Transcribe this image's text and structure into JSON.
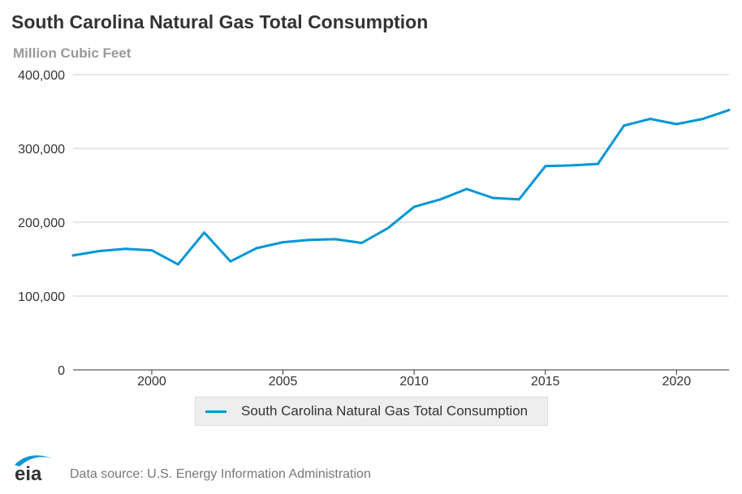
{
  "header": {
    "title": "South Carolina Natural Gas Total Consumption",
    "subtitle": "Million Cubic Feet"
  },
  "legend": {
    "label": "South Carolina Natural Gas Total Consumption"
  },
  "footer": {
    "logo_text": "eia",
    "source": "Data source: U.S. Energy Information Administration"
  },
  "colors": {
    "series": "#0096d7",
    "grid": "#cccccc",
    "logo": "#0096d7"
  },
  "chart_data": {
    "type": "line",
    "title": "South Carolina Natural Gas Total Consumption",
    "ylabel": "Million Cubic Feet",
    "xlabel": "",
    "xlim": [
      1997,
      2022
    ],
    "ylim": [
      0,
      400000
    ],
    "yticks": [
      0,
      100000,
      200000,
      300000,
      400000
    ],
    "ytick_labels": [
      "0",
      "100,000",
      "200,000",
      "300,000",
      "400,000"
    ],
    "xticks": [
      2000,
      2005,
      2010,
      2015,
      2020
    ],
    "xtick_labels": [
      "2000",
      "2005",
      "2010",
      "2015",
      "2020"
    ],
    "grid": true,
    "legend_position": "bottom-center",
    "series": [
      {
        "name": "South Carolina Natural Gas Total Consumption",
        "x": [
          1997,
          1998,
          1999,
          2000,
          2001,
          2002,
          2003,
          2004,
          2005,
          2006,
          2007,
          2008,
          2009,
          2010,
          2011,
          2012,
          2013,
          2014,
          2015,
          2016,
          2017,
          2018,
          2019,
          2020,
          2021,
          2022
        ],
        "values": [
          155000,
          161000,
          164000,
          162000,
          143000,
          186000,
          147000,
          165000,
          173000,
          176000,
          177000,
          172000,
          192000,
          221000,
          231000,
          245000,
          233000,
          231000,
          276000,
          277000,
          279000,
          331000,
          340000,
          333000,
          340000,
          352000
        ]
      }
    ]
  }
}
